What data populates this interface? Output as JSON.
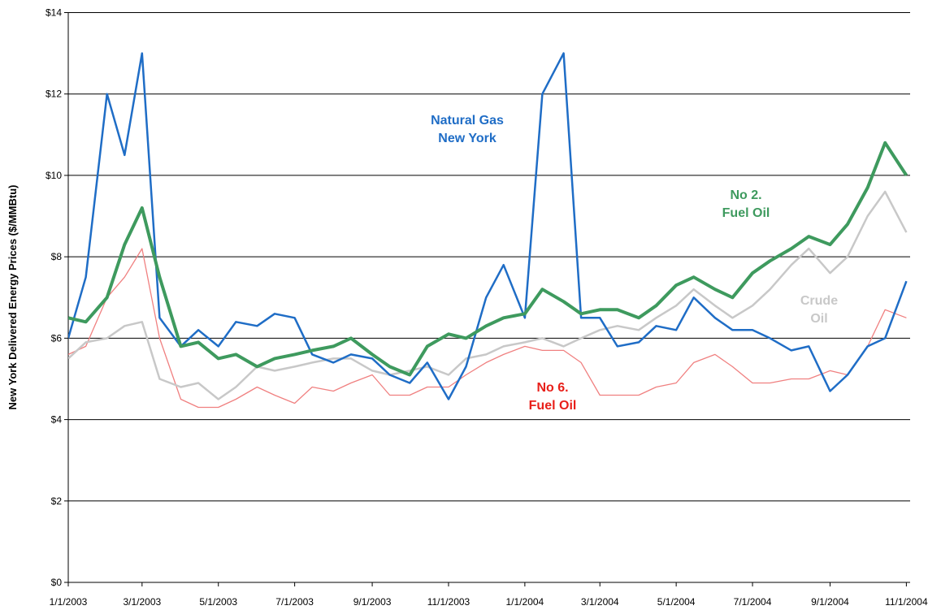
{
  "chart_data": {
    "type": "line",
    "y_label": "New York Delivered Energy Prices ($/MMBtu)",
    "x": [
      "1/1/2003",
      "1/15/2003",
      "2/1/2003",
      "2/15/2003",
      "3/1/2003",
      "3/15/2003",
      "4/1/2003",
      "4/15/2003",
      "5/1/2003",
      "5/15/2003",
      "6/1/2003",
      "6/15/2003",
      "7/1/2003",
      "7/15/2003",
      "8/1/2003",
      "8/15/2003",
      "9/1/2003",
      "9/15/2003",
      "10/1/2003",
      "10/15/2003",
      "11/1/2003",
      "11/15/2003",
      "12/1/2003",
      "12/15/2003",
      "1/1/2004",
      "1/15/2004",
      "2/1/2004",
      "2/15/2004",
      "3/1/2004",
      "3/15/2004",
      "4/1/2004",
      "4/15/2004",
      "5/1/2004",
      "5/15/2004",
      "6/1/2004",
      "6/15/2004",
      "7/1/2004",
      "7/15/2004",
      "8/1/2004",
      "8/15/2004",
      "9/1/2004",
      "9/15/2004",
      "10/1/2004",
      "10/15/2004",
      "11/1/2004"
    ],
    "series": [
      {
        "label": [
          "Natural Gas",
          "New York"
        ],
        "color": "#1f6dc6",
        "width": 2.5,
        "values": [
          6.0,
          7.5,
          12,
          10.5,
          13,
          6.5,
          5.8,
          6.2,
          5.8,
          6.4,
          6.3,
          6.6,
          6.5,
          5.6,
          5.4,
          5.6,
          5.5,
          5.1,
          4.9,
          5.4,
          4.5,
          5.3,
          7.0,
          7.8,
          6.5,
          12,
          13,
          6.5,
          6.5,
          5.8,
          5.9,
          6.3,
          6.2,
          7.0,
          6.5,
          6.2,
          6.2,
          6.0,
          5.7,
          5.8,
          4.7,
          5.1,
          5.8,
          6.0,
          7.4
        ]
      },
      {
        "label": [
          "No 2.",
          "Fuel Oil"
        ],
        "color": "#3e9a5e",
        "width": 4,
        "values": [
          6.5,
          6.4,
          7.0,
          8.3,
          9.2,
          7.5,
          5.8,
          5.9,
          5.5,
          5.6,
          5.3,
          5.5,
          5.6,
          5.7,
          5.8,
          6.0,
          5.6,
          5.3,
          5.1,
          5.8,
          6.1,
          6.0,
          6.3,
          6.5,
          6.6,
          7.2,
          6.9,
          6.6,
          6.7,
          6.7,
          6.5,
          6.8,
          7.3,
          7.5,
          7.2,
          7.0,
          7.6,
          7.9,
          8.2,
          8.5,
          8.3,
          8.8,
          9.7,
          10.8,
          10.0
        ]
      },
      {
        "label": [
          "Crude",
          "Oil"
        ],
        "color": "#c8c8c8",
        "width": 2.5,
        "values": [
          5.5,
          5.9,
          6.0,
          6.3,
          6.4,
          5.0,
          4.8,
          4.9,
          4.5,
          4.8,
          5.3,
          5.2,
          5.3,
          5.4,
          5.5,
          5.5,
          5.2,
          5.1,
          5.2,
          5.3,
          5.1,
          5.5,
          5.6,
          5.8,
          5.9,
          6.0,
          5.8,
          6.0,
          6.2,
          6.3,
          6.2,
          6.5,
          6.8,
          7.2,
          6.8,
          6.5,
          6.8,
          7.2,
          7.8,
          8.2,
          7.6,
          8.0,
          9.0,
          9.6,
          8.6
        ]
      },
      {
        "label": [
          "No 6.",
          "Fuel Oil"
        ],
        "color": "#f08080",
        "width": 1.3,
        "values": [
          5.6,
          5.8,
          7.0,
          7.5,
          8.2,
          6.0,
          4.5,
          4.3,
          4.3,
          4.5,
          4.8,
          4.6,
          4.4,
          4.8,
          4.7,
          4.9,
          5.1,
          4.6,
          4.6,
          4.8,
          4.8,
          5.1,
          5.4,
          5.6,
          5.8,
          5.7,
          5.7,
          5.4,
          4.6,
          4.6,
          4.6,
          4.8,
          4.9,
          5.4,
          5.6,
          5.3,
          4.9,
          4.9,
          5.0,
          5.0,
          5.2,
          5.1,
          5.8,
          6.7,
          6.5
        ]
      }
    ],
    "xlim": [
      "1/1/2003",
      "11/4/2004"
    ],
    "xticks": [
      "1/1/2003",
      "3/1/2003",
      "5/1/2003",
      "7/1/2003",
      "9/1/2003",
      "11/1/2003",
      "1/1/2004",
      "3/1/2004",
      "5/1/2004",
      "7/1/2004",
      "9/1/2004",
      "11/1/2004"
    ],
    "ylim": [
      0,
      14
    ],
    "yticks": [
      {
        "value": 0,
        "label": "$0"
      },
      {
        "value": 2,
        "label": "$2"
      },
      {
        "value": 4,
        "label": "$4"
      },
      {
        "value": 6,
        "label": "$6"
      },
      {
        "value": 8,
        "label": "$8"
      },
      {
        "value": 10,
        "label": "$10"
      },
      {
        "value": 12,
        "label": "$12"
      },
      {
        "value": 14,
        "label": "$14"
      }
    ],
    "grid": true
  }
}
